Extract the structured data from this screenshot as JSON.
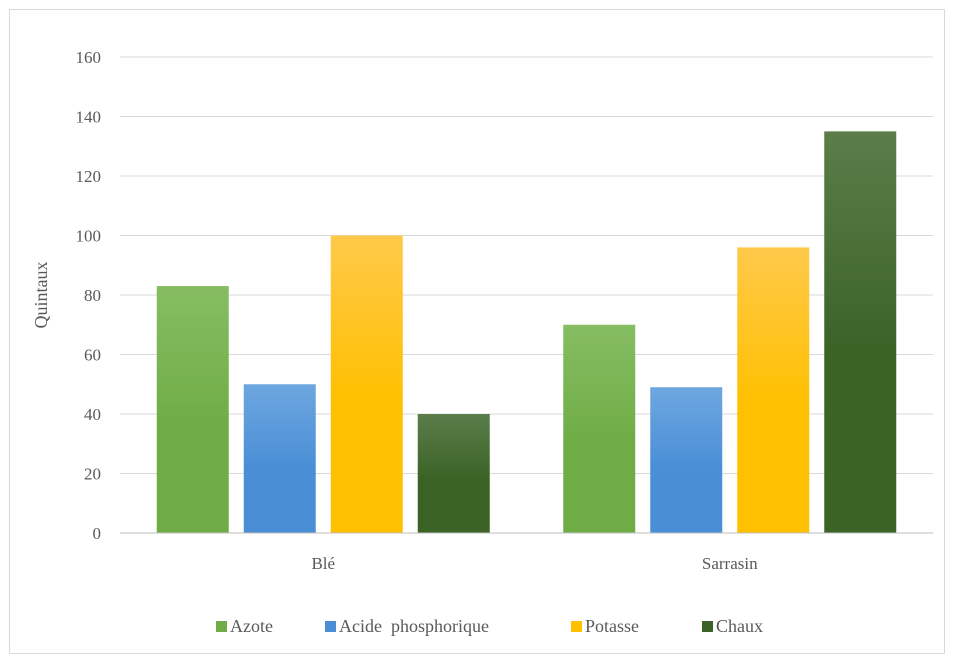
{
  "chart_data": {
    "type": "bar",
    "title": "",
    "xlabel": "",
    "ylabel": "Quintaux",
    "ylim": [
      0,
      160
    ],
    "yticks": [
      0,
      20,
      40,
      60,
      80,
      100,
      120,
      140,
      160
    ],
    "grid": true,
    "legend_position": "bottom",
    "categories": [
      "Blé",
      "Sarrasin"
    ],
    "series": [
      {
        "name": "Azote",
        "values": [
          83,
          70
        ],
        "color": "#70ad47",
        "color_light": "#86bd62"
      },
      {
        "name": "Acide  phosphorique",
        "values": [
          50,
          49
        ],
        "color": "#4a8fd6",
        "color_light": "#6ea7e0"
      },
      {
        "name": "Potasse",
        "values": [
          100,
          96
        ],
        "color": "#ffc000",
        "color_light": "#ffc94a"
      },
      {
        "name": "Chaux",
        "values": [
          40,
          135
        ],
        "color": "#3b6326",
        "color_light": "#5a7d4a"
      }
    ]
  }
}
